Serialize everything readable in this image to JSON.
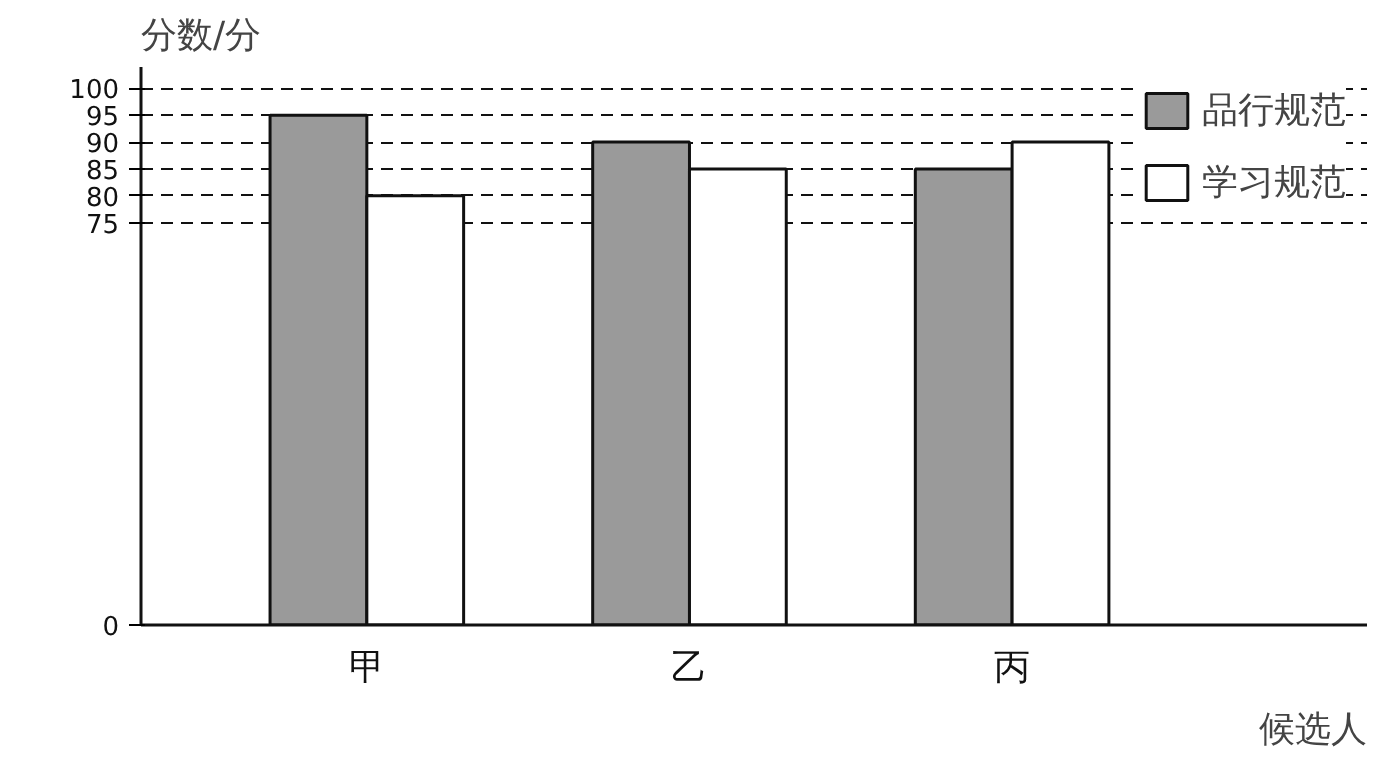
{
  "chart_data": {
    "type": "bar",
    "ylabel": "分数/分",
    "xlabel": "候选人",
    "categories": [
      "甲",
      "乙",
      "丙"
    ],
    "series": [
      {
        "name": "品行规范",
        "color": "#9a9a9a",
        "values": [
          95,
          90,
          85
        ]
      },
      {
        "name": "学习规范",
        "color": "#ffffff",
        "values": [
          80,
          85,
          90
        ]
      }
    ],
    "ylim": [
      0,
      104
    ],
    "yticks": [
      0,
      75,
      80,
      85,
      90,
      95,
      100
    ],
    "grid": "y",
    "legend": "top right"
  }
}
